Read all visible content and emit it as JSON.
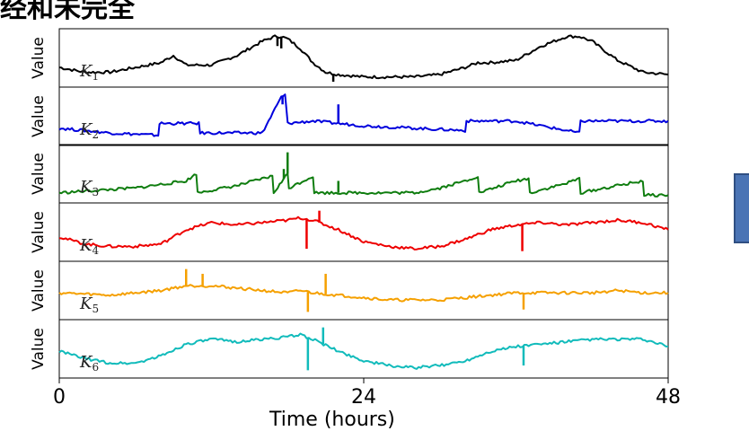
{
  "header": {
    "title_fragment": "经和未完全"
  },
  "x_axis": {
    "label_fragment": "Time (hours)"
  },
  "chart_data": {
    "type": "line",
    "xlim": [
      0,
      48
    ],
    "x_ticks": [
      "0",
      "24",
      "48"
    ],
    "ylabel": "Value",
    "grid": false,
    "legend": "none",
    "series": [
      {
        "name": "K1",
        "color": "#000000",
        "x": [
          0,
          2,
          4,
          6,
          8,
          9,
          10,
          12,
          14,
          16,
          17,
          17.5,
          18,
          19,
          20,
          21,
          22,
          24,
          26,
          28,
          30,
          32,
          33,
          34,
          36,
          38,
          40,
          41,
          42,
          44,
          46,
          48
        ],
        "values": [
          0.3,
          0.2,
          0.2,
          0.3,
          0.4,
          0.55,
          0.35,
          0.35,
          0.55,
          0.85,
          0.95,
          0.95,
          0.9,
          0.7,
          0.4,
          0.2,
          0.15,
          0.1,
          0.1,
          0.1,
          0.15,
          0.3,
          0.4,
          0.4,
          0.45,
          0.75,
          0.95,
          0.95,
          0.85,
          0.45,
          0.2,
          0.15
        ]
      },
      {
        "name": "K2",
        "color": "#0000dd",
        "x": [
          0,
          4,
          7.8,
          7.9,
          11,
          11.1,
          16,
          17.5,
          17.8,
          18,
          20,
          22,
          24,
          28,
          32,
          32.1,
          36,
          41,
          41.1,
          44,
          48
        ],
        "values": [
          0.25,
          0.15,
          0.1,
          0.35,
          0.35,
          0.15,
          0.15,
          0.9,
          0.95,
          0.35,
          0.4,
          0.35,
          0.3,
          0.25,
          0.2,
          0.4,
          0.4,
          0.15,
          0.4,
          0.4,
          0.4
        ]
      },
      {
        "name": "K3",
        "color": "#0f7d0f",
        "x": [
          0,
          3,
          6,
          10,
          10.8,
          10.9,
          14,
          16.8,
          16.9,
          18,
          18.1,
          20,
          20.1,
          24,
          28,
          30,
          32,
          33,
          33.1,
          36,
          37,
          37.1,
          40,
          41,
          41.1,
          44,
          46,
          46.1,
          48
        ],
        "values": [
          0.1,
          0.15,
          0.2,
          0.35,
          0.5,
          0.1,
          0.25,
          0.45,
          0.1,
          0.5,
          0.2,
          0.45,
          0.1,
          0.1,
          0.1,
          0.2,
          0.35,
          0.45,
          0.1,
          0.35,
          0.4,
          0.1,
          0.3,
          0.4,
          0.1,
          0.25,
          0.35,
          0.05,
          0.05
        ]
      },
      {
        "name": "K4",
        "color": "#ee0000",
        "x": [
          0,
          2,
          4,
          6,
          8,
          10,
          12,
          14,
          16,
          18,
          19,
          20,
          22,
          24,
          26,
          28,
          30,
          32,
          34,
          36,
          38,
          40,
          42,
          44,
          46,
          48
        ],
        "values": [
          0.4,
          0.25,
          0.2,
          0.2,
          0.25,
          0.55,
          0.7,
          0.65,
          0.7,
          0.75,
          0.8,
          0.75,
          0.55,
          0.3,
          0.2,
          0.15,
          0.2,
          0.35,
          0.55,
          0.65,
          0.7,
          0.65,
          0.7,
          0.75,
          0.7,
          0.55
        ]
      },
      {
        "name": "K5",
        "color": "#f5a000",
        "x": [
          0,
          4,
          8,
          10,
          12,
          14,
          16,
          18,
          19,
          20,
          22,
          24,
          26,
          28,
          30,
          32,
          34,
          36,
          38,
          40,
          42,
          44,
          46,
          48
        ],
        "values": [
          0.45,
          0.4,
          0.5,
          0.6,
          0.6,
          0.55,
          0.5,
          0.45,
          0.5,
          0.45,
          0.4,
          0.35,
          0.3,
          0.3,
          0.3,
          0.35,
          0.4,
          0.45,
          0.45,
          0.45,
          0.45,
          0.5,
          0.45,
          0.45
        ]
      },
      {
        "name": "K6",
        "color": "#11bbbb",
        "x": [
          0,
          2,
          4,
          6,
          8,
          10,
          12,
          14,
          16,
          18,
          19,
          20,
          22,
          24,
          26,
          28,
          30,
          32,
          34,
          36,
          38,
          40,
          42,
          44,
          46,
          48
        ],
        "values": [
          0.45,
          0.3,
          0.2,
          0.2,
          0.35,
          0.6,
          0.7,
          0.65,
          0.7,
          0.75,
          0.8,
          0.7,
          0.45,
          0.25,
          0.15,
          0.1,
          0.15,
          0.25,
          0.45,
          0.55,
          0.6,
          0.65,
          0.7,
          0.7,
          0.7,
          0.55
        ]
      }
    ],
    "spikes": [
      {
        "series": 0,
        "x": 17.2,
        "to": 0.75
      },
      {
        "series": 0,
        "x": 17.5,
        "to": 0.7
      },
      {
        "series": 0,
        "x": 21.6,
        "to": 0.0
      },
      {
        "series": 1,
        "x": 17.8,
        "to": 0.95
      },
      {
        "series": 1,
        "x": 17.6,
        "to": 0.75
      },
      {
        "series": 1,
        "x": 22.0,
        "to": 0.75
      },
      {
        "series": 2,
        "x": 18.0,
        "to": 0.95
      },
      {
        "series": 2,
        "x": 17.7,
        "to": 0.6
      },
      {
        "series": 2,
        "x": 22.0,
        "to": 0.35
      },
      {
        "series": 3,
        "x": 19.5,
        "to": 0.15
      },
      {
        "series": 3,
        "x": 36.5,
        "to": 0.1
      },
      {
        "series": 3,
        "x": 20.5,
        "to": 0.95
      },
      {
        "series": 4,
        "x": 19.6,
        "to": 0.05
      },
      {
        "series": 4,
        "x": 36.6,
        "to": 0.1
      },
      {
        "series": 4,
        "x": 10.0,
        "to": 0.95
      },
      {
        "series": 4,
        "x": 11.3,
        "to": 0.85
      },
      {
        "series": 4,
        "x": 21.0,
        "to": 0.85
      },
      {
        "series": 5,
        "x": 19.6,
        "to": 0.05
      },
      {
        "series": 5,
        "x": 36.6,
        "to": 0.15
      },
      {
        "series": 5,
        "x": 20.8,
        "to": 0.95
      }
    ]
  }
}
